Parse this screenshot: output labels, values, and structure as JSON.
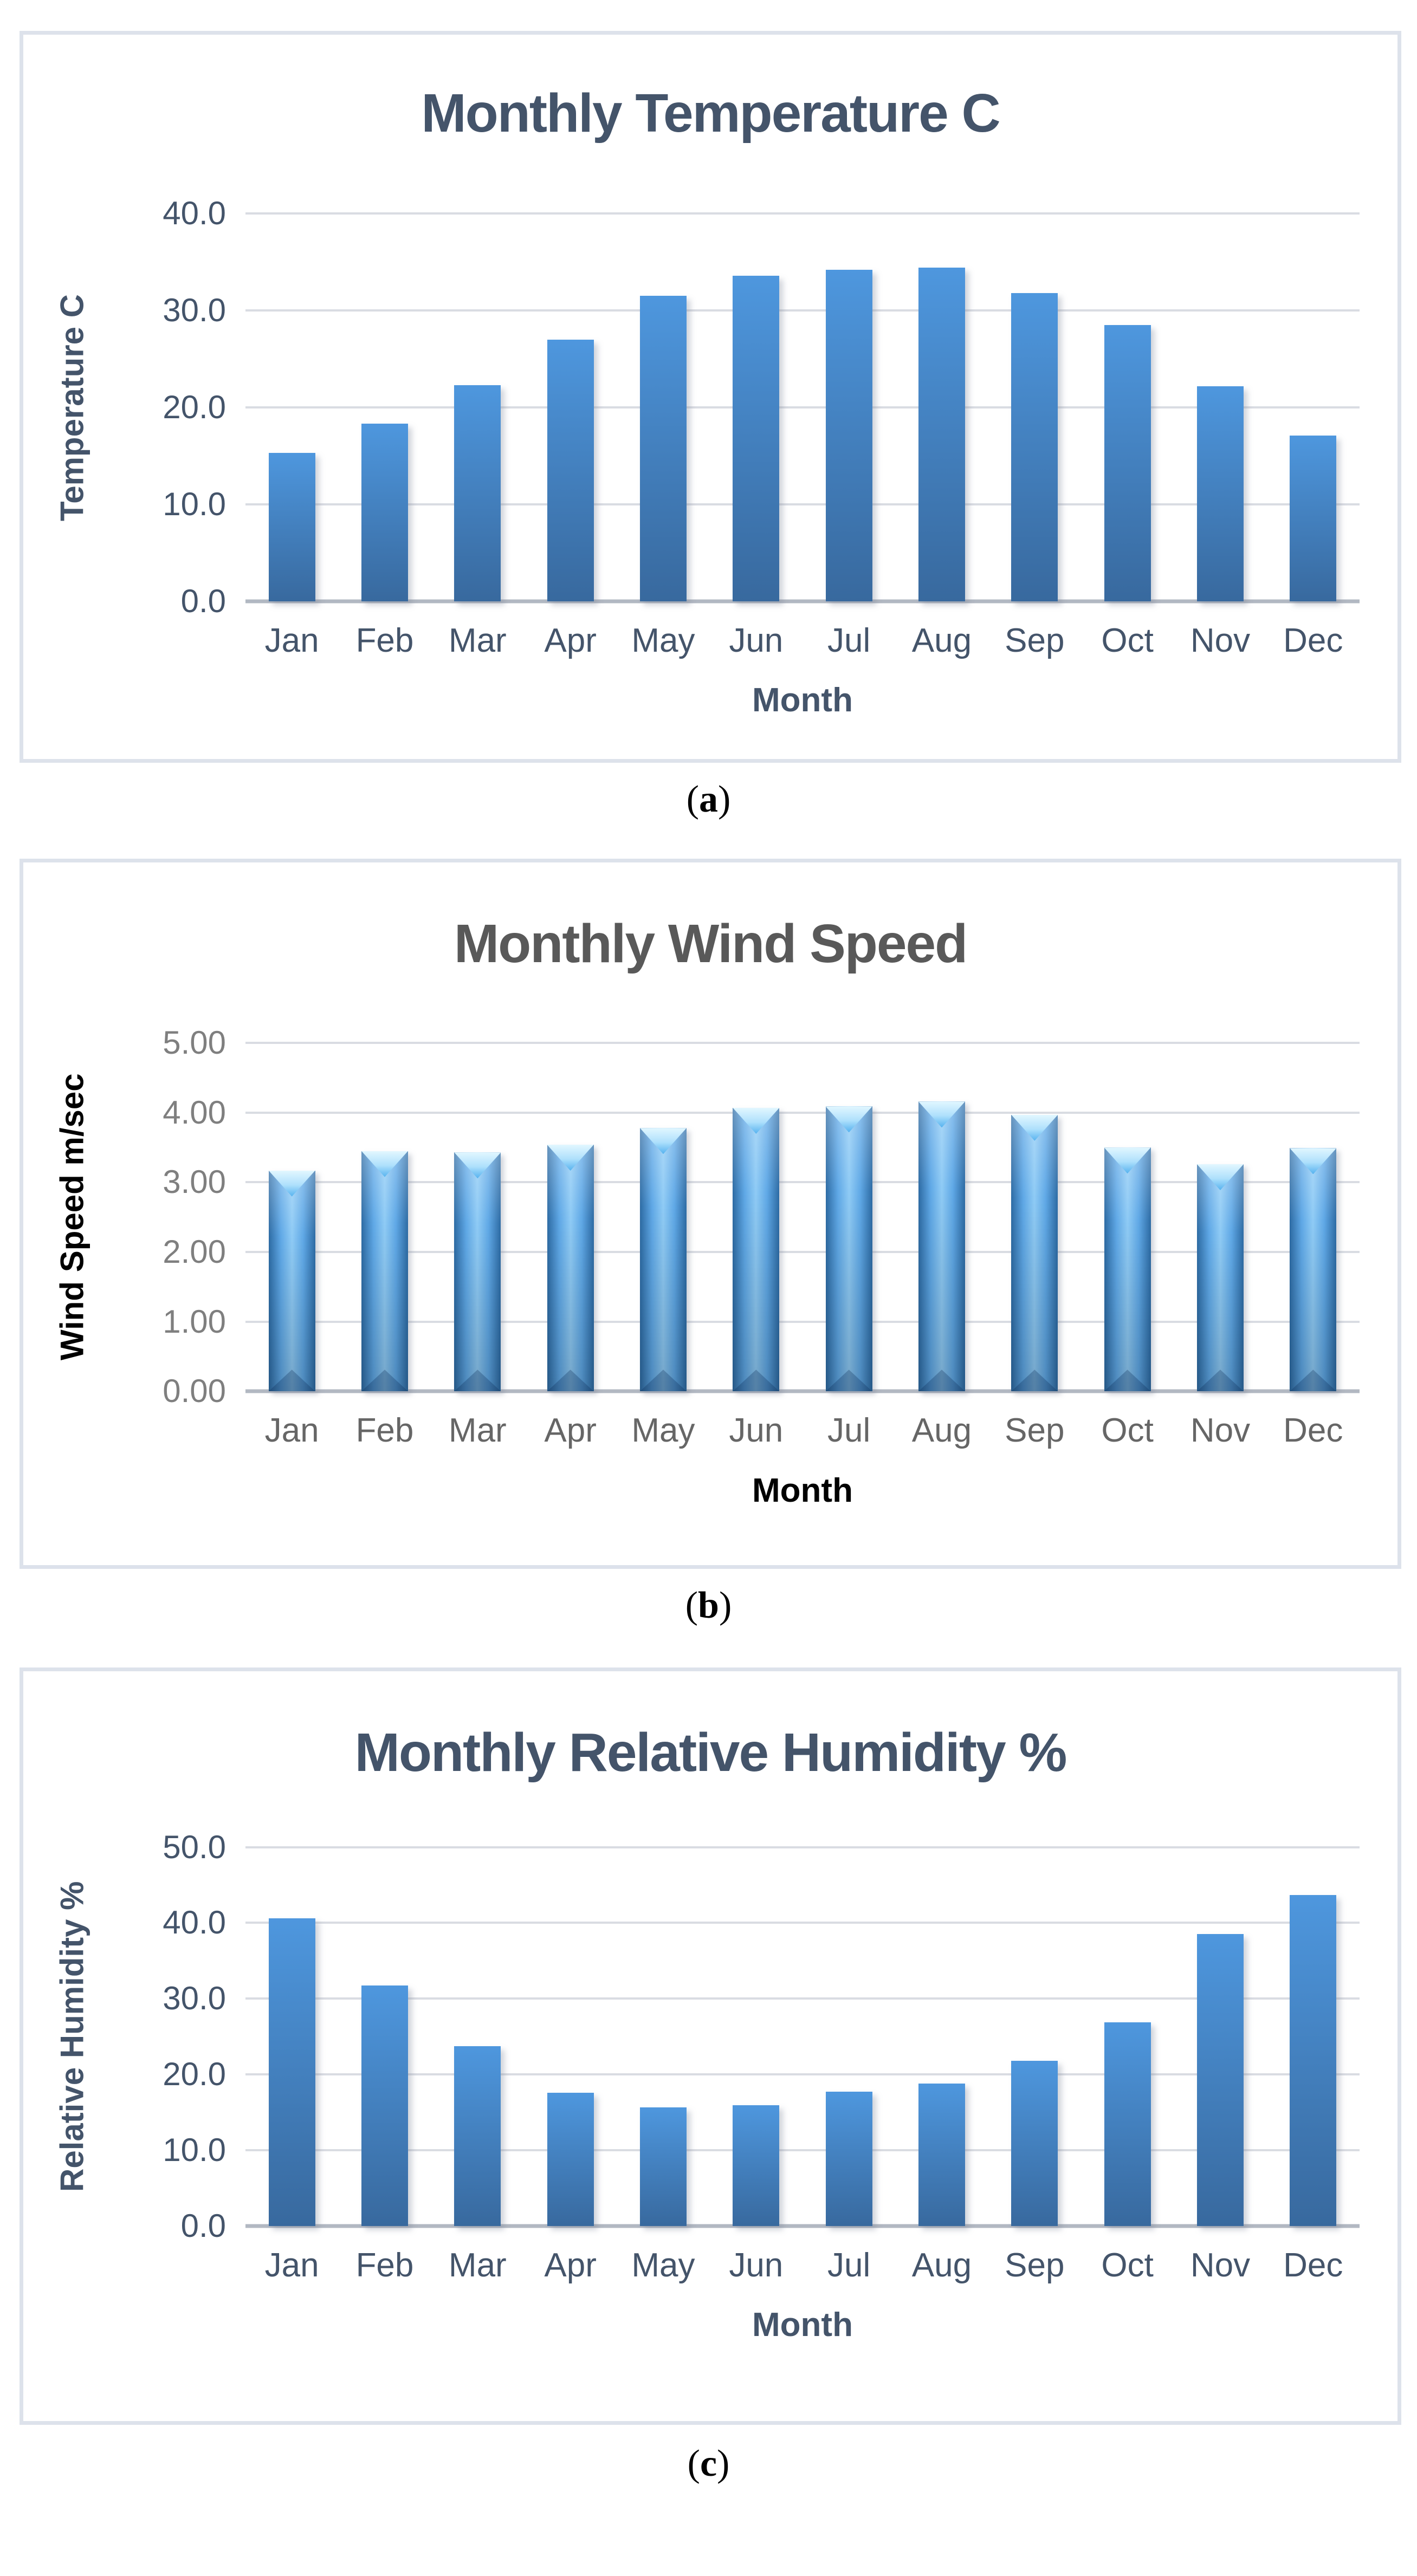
{
  "page": {
    "background": "#ffffff"
  },
  "captions": [
    {
      "open": "(",
      "letter": "a",
      "close": ")"
    },
    {
      "open": "(",
      "letter": "b",
      "close": ")"
    },
    {
      "open": "(",
      "letter": "c",
      "close": ")"
    }
  ],
  "chart_data": [
    {
      "type": "bar",
      "title": "Monthly Temperature C",
      "xlabel": "Month",
      "ylabel": "Temperature C",
      "categories": [
        "Jan",
        "Feb",
        "Mar",
        "Apr",
        "May",
        "Jun",
        "Jul",
        "Aug",
        "Sep",
        "Oct",
        "Nov",
        "Dec"
      ],
      "values": [
        15.3,
        18.3,
        22.3,
        27.0,
        31.5,
        33.6,
        34.2,
        34.4,
        31.8,
        28.5,
        22.2,
        17.1
      ],
      "ylim": [
        0,
        40
      ],
      "yticks": [
        "40.0",
        "30.0",
        "20.0",
        "10.0",
        "0.0"
      ],
      "grid": true,
      "legend": false,
      "bar_style": "flat-gradient",
      "colors": {
        "title": "#44546A",
        "ticks": "#44546A",
        "months": "#44546A",
        "axis_titles": "#44546A",
        "bar_top": "#4E97DE",
        "bar_bottom": "#38699E"
      }
    },
    {
      "type": "bar",
      "title": "Monthly Wind Speed",
      "xlabel": "Month",
      "ylabel": "Wind Speed m/sec",
      "categories": [
        "Jan",
        "Feb",
        "Mar",
        "Apr",
        "May",
        "Jun",
        "Jul",
        "Aug",
        "Sep",
        "Oct",
        "Nov",
        "Dec"
      ],
      "values": [
        3.17,
        3.45,
        3.43,
        3.54,
        3.78,
        4.07,
        4.09,
        4.16,
        3.97,
        3.5,
        3.26,
        3.49
      ],
      "ylim": [
        0,
        5
      ],
      "yticks": [
        "5.00",
        "4.00",
        "3.00",
        "2.00",
        "1.00",
        "0.00"
      ],
      "grid": true,
      "legend": false,
      "bar_style": "bevel",
      "colors": {
        "title": "#595959",
        "ticks": "#7F7F7F",
        "months": "#666666",
        "axis_titles": "#000000",
        "edge": "#2D6BA4",
        "mid": "#5FA8E6",
        "light": "#8FCBF5",
        "cap": "#AEE0FC"
      }
    },
    {
      "type": "bar",
      "title": "Monthly Relative Humidity %",
      "xlabel": "Month",
      "ylabel": "Relative Humidity %",
      "categories": [
        "Jan",
        "Feb",
        "Mar",
        "Apr",
        "May",
        "Jun",
        "Jul",
        "Aug",
        "Sep",
        "Oct",
        "Nov",
        "Dec"
      ],
      "values": [
        40.6,
        31.7,
        23.7,
        17.6,
        15.6,
        15.9,
        17.7,
        18.8,
        21.8,
        26.9,
        38.5,
        43.7
      ],
      "ylim": [
        0,
        50
      ],
      "yticks": [
        "50.0",
        "40.0",
        "30.0",
        "20.0",
        "10.0",
        "0.0"
      ],
      "grid": true,
      "legend": false,
      "bar_style": "flat-gradient",
      "colors": {
        "title": "#44546A",
        "ticks": "#44546A",
        "months": "#44546A",
        "axis_titles": "#44546A",
        "bar_top": "#4E97DE",
        "bar_bottom": "#38699E"
      }
    }
  ]
}
